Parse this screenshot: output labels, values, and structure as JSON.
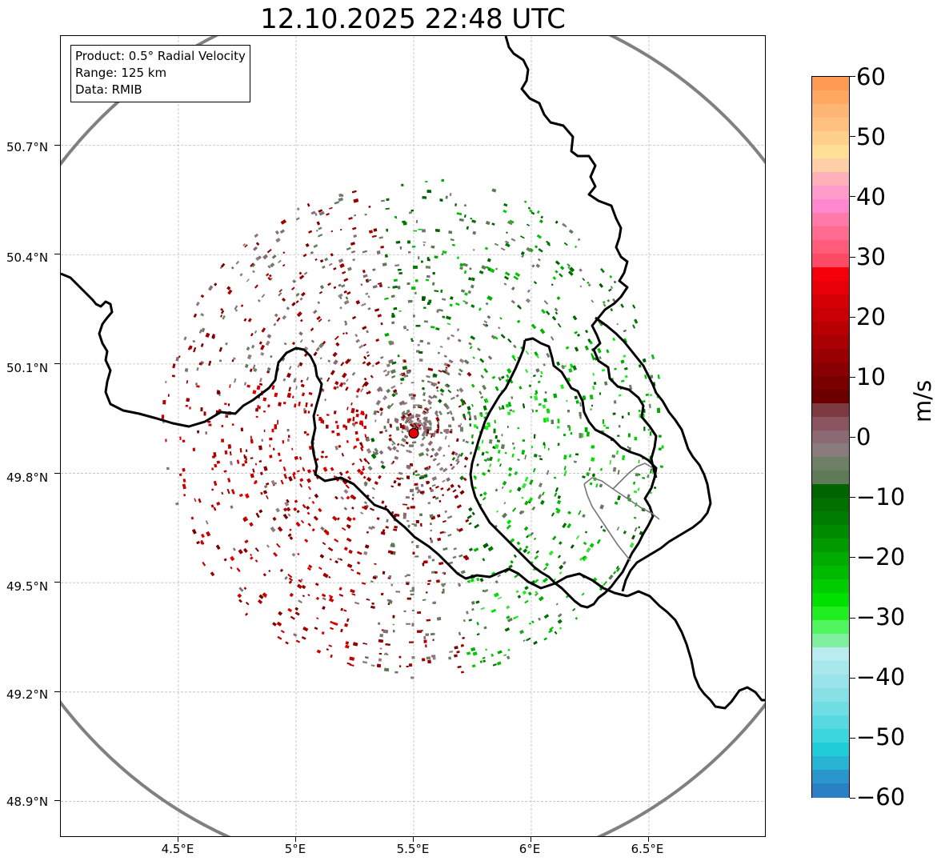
{
  "title": "12.10.2025 22:48 UTC",
  "info": {
    "product": "Product: 0.5° Radial Velocity",
    "range": "Range: 125 km",
    "data": "Data: RMIB"
  },
  "axes": {
    "y_ticks": [
      "50.7°N",
      "50.4°N",
      "50.1°N",
      "49.8°N",
      "49.5°N",
      "49.2°N",
      "48.9°N"
    ],
    "x_ticks": [
      "4.5°E",
      "5°E",
      "5.5°E",
      "6°E",
      "6.5°E"
    ],
    "lat_values": [
      50.7,
      50.4,
      50.1,
      49.8,
      49.5,
      49.2,
      48.9
    ],
    "lon_values": [
      4.5,
      5.0,
      5.5,
      6.0,
      6.5
    ],
    "lon_range": [
      4.0,
      7.0
    ],
    "lat_range": [
      48.8,
      51.0
    ],
    "grid": true
  },
  "radar": {
    "site_lon": 5.5,
    "site_lat": 49.91,
    "site_color": "#e60000",
    "range_circle_color": "#808080"
  },
  "colorbar": {
    "unit": "m/s",
    "min": -60,
    "max": 60,
    "tick_labels": [
      "60",
      "50",
      "40",
      "30",
      "20",
      "10",
      "0",
      "−10",
      "−20",
      "−30",
      "−40",
      "−50",
      "−60"
    ],
    "tick_values": [
      60,
      50,
      40,
      30,
      20,
      10,
      0,
      -10,
      -20,
      -30,
      -40,
      -50,
      -60
    ],
    "colors_top_to_bottom": [
      "#ff9a52",
      "#ffa862",
      "#ffb573",
      "#ffc080",
      "#ffd08c",
      "#ffe096",
      "#ffd0a8",
      "#ffb0b8",
      "#ff9ccc",
      "#ff88d0",
      "#ff7aa8",
      "#ff6c90",
      "#ff5c7c",
      "#ff4a66",
      "#f5000a",
      "#e80008",
      "#d50006",
      "#c80005",
      "#b80004",
      "#a80003",
      "#980002",
      "#880002",
      "#780000",
      "#6c0000",
      "#7a3a40",
      "#8a5460",
      "#8b6a74",
      "#8a7c7c",
      "#6e8066",
      "#5e7a56",
      "#006400",
      "#007000",
      "#007c00",
      "#008a00",
      "#009a00",
      "#00aa00",
      "#00ba00",
      "#00cc00",
      "#00e000",
      "#20ee20",
      "#50f560",
      "#80f0a0",
      "#b8ecf0",
      "#a8e8ec",
      "#98e4ea",
      "#86e0e6",
      "#70dce4",
      "#58d8e0",
      "#3cd6de",
      "#20ccd8",
      "#28b4d4",
      "#2a96cc",
      "#2a80c4"
    ]
  }
}
